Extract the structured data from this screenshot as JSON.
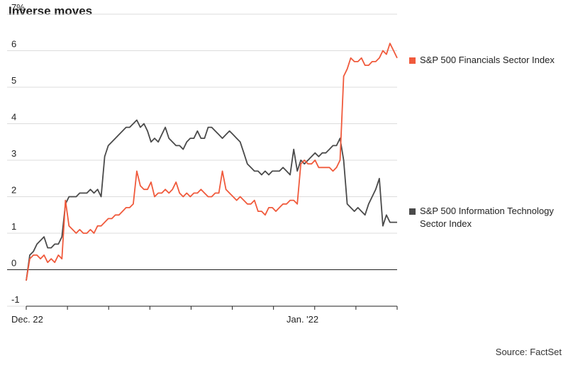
{
  "title": "Inverse moves",
  "source": "Source: FactSet",
  "colors": {
    "financials": "#f05a3c",
    "tech": "#4a4a4a",
    "grid": "#dcdcdc",
    "zero": "#222222"
  },
  "chart_data": {
    "type": "line",
    "title": "Inverse moves",
    "ylabel": "%",
    "ylim": [
      -1,
      7
    ],
    "yticks": [
      "7%",
      "6",
      "5",
      "4",
      "3",
      "2",
      "1",
      "0",
      "-1"
    ],
    "ytick_values": [
      7,
      6,
      5,
      4,
      3,
      2,
      1,
      0,
      -1
    ],
    "xlabels": [
      "Dec. 22",
      "Jan. '22"
    ],
    "x_ticks_count": 10,
    "xlim": [
      0,
      52
    ],
    "grid": true,
    "legend": "right",
    "series": [
      {
        "name": "S&P 500 Financials Sector Index",
        "color": "#f05a3c",
        "x": [
          0,
          0.5,
          1,
          1.5,
          2,
          2.5,
          3,
          3.5,
          4,
          4.5,
          5,
          5.5,
          6,
          6.5,
          7,
          7.5,
          8,
          8.5,
          9,
          9.5,
          10,
          10.5,
          11,
          11.5,
          12,
          12.5,
          13,
          13.5,
          14,
          14.5,
          15,
          15.5,
          16,
          16.5,
          17,
          17.5,
          18,
          18.5,
          19,
          19.5,
          20,
          20.5,
          21,
          21.5,
          22,
          22.5,
          23,
          23.5,
          24,
          24.5,
          25,
          25.5,
          26,
          26.5,
          27,
          27.5,
          28,
          28.5,
          29,
          29.5,
          30,
          30.5,
          31,
          31.5,
          32,
          32.5,
          33,
          33.5,
          34,
          34.5,
          35,
          35.5,
          36,
          36.5,
          37,
          37.5,
          38,
          38.5,
          39,
          39.5,
          40,
          40.5,
          41,
          41.5,
          42,
          42.5,
          43,
          43.5,
          44,
          44.5,
          45,
          45.5,
          46,
          46.5,
          47,
          47.5,
          48,
          48.5,
          49,
          49.5,
          50,
          50.5,
          51,
          51.5,
          52
        ],
        "values": [
          -0.3,
          0.3,
          0.4,
          0.4,
          0.3,
          0.4,
          0.2,
          0.3,
          0.2,
          0.4,
          0.3,
          1.9,
          1.2,
          1.1,
          1.0,
          1.1,
          1.0,
          1.0,
          1.1,
          1.0,
          1.2,
          1.2,
          1.3,
          1.4,
          1.4,
          1.5,
          1.5,
          1.6,
          1.7,
          1.7,
          1.8,
          2.7,
          2.3,
          2.2,
          2.2,
          2.4,
          2.0,
          2.1,
          2.1,
          2.2,
          2.1,
          2.2,
          2.4,
          2.1,
          2.0,
          2.1,
          2.0,
          2.1,
          2.1,
          2.2,
          2.1,
          2.0,
          2.0,
          2.1,
          2.1,
          2.7,
          2.2,
          2.1,
          2.0,
          1.9,
          2.0,
          1.9,
          1.8,
          1.8,
          1.9,
          1.6,
          1.6,
          1.5,
          1.7,
          1.7,
          1.6,
          1.7,
          1.8,
          1.8,
          1.9,
          1.9,
          1.8,
          2.9,
          3.0,
          2.9,
          2.9,
          3.0,
          2.8,
          2.8,
          2.8,
          2.8,
          2.7,
          2.8,
          3.0,
          5.3,
          5.5,
          5.8,
          5.7,
          5.7,
          5.8,
          5.6,
          5.6,
          5.7,
          5.7,
          5.8,
          6.0,
          5.9,
          6.2,
          6.0,
          5.8
        ]
      },
      {
        "name": "S&P 500 Information Technology Sector Index",
        "color": "#4a4a4a",
        "x": [
          0,
          0.5,
          1,
          1.5,
          2,
          2.5,
          3,
          3.5,
          4,
          4.5,
          5,
          5.5,
          6,
          6.5,
          7,
          7.5,
          8,
          8.5,
          9,
          9.5,
          10,
          10.5,
          11,
          11.5,
          12,
          12.5,
          13,
          13.5,
          14,
          14.5,
          15,
          15.5,
          16,
          16.5,
          17,
          17.5,
          18,
          18.5,
          19,
          19.5,
          20,
          20.5,
          21,
          21.5,
          22,
          22.5,
          23,
          23.5,
          24,
          24.5,
          25,
          25.5,
          26,
          26.5,
          27,
          27.5,
          28,
          28.5,
          29,
          29.5,
          30,
          30.5,
          31,
          31.5,
          32,
          32.5,
          33,
          33.5,
          34,
          34.5,
          35,
          35.5,
          36,
          36.5,
          37,
          37.5,
          38,
          38.5,
          39,
          39.5,
          40,
          40.5,
          41,
          41.5,
          42,
          42.5,
          43,
          43.5,
          44,
          44.5,
          45,
          45.5,
          46,
          46.5,
          47,
          47.5,
          48,
          48.5,
          49,
          49.5,
          50,
          50.5,
          51,
          51.5,
          52
        ],
        "values": [
          -0.3,
          0.4,
          0.5,
          0.7,
          0.8,
          0.9,
          0.6,
          0.6,
          0.7,
          0.7,
          0.9,
          1.8,
          2.0,
          2.0,
          2.0,
          2.1,
          2.1,
          2.1,
          2.2,
          2.1,
          2.2,
          2.0,
          3.1,
          3.4,
          3.5,
          3.6,
          3.7,
          3.8,
          3.9,
          3.9,
          4.0,
          4.1,
          3.9,
          4.0,
          3.8,
          3.5,
          3.6,
          3.5,
          3.7,
          3.9,
          3.6,
          3.5,
          3.4,
          3.4,
          3.3,
          3.5,
          3.6,
          3.6,
          3.8,
          3.6,
          3.6,
          3.9,
          3.9,
          3.8,
          3.7,
          3.6,
          3.7,
          3.8,
          3.7,
          3.6,
          3.5,
          3.2,
          2.9,
          2.8,
          2.7,
          2.7,
          2.6,
          2.7,
          2.6,
          2.7,
          2.7,
          2.7,
          2.8,
          2.7,
          2.6,
          3.3,
          2.7,
          3.0,
          2.9,
          3.0,
          3.1,
          3.2,
          3.1,
          3.2,
          3.2,
          3.3,
          3.4,
          3.4,
          3.6,
          3.0,
          1.8,
          1.7,
          1.6,
          1.7,
          1.6,
          1.5,
          1.8,
          2.0,
          2.2,
          2.5,
          1.2,
          1.5,
          1.3,
          1.3,
          1.3
        ]
      }
    ]
  }
}
